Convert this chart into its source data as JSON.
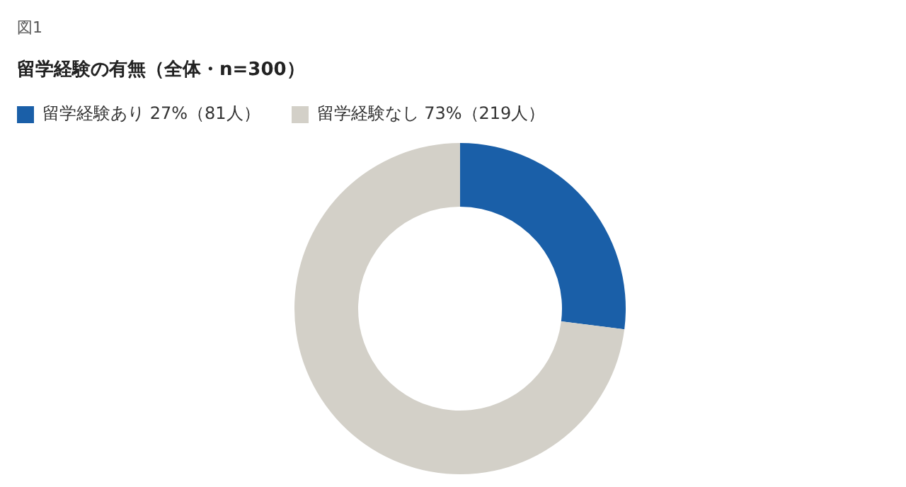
{
  "chart_data": {
    "type": "donut",
    "title": "留学経験の有無（全体・n=300）",
    "annotations": [
      "図1"
    ],
    "categories": [
      "留学経験あり 27%（81人）",
      "留学経験なし 73%（219人）"
    ],
    "values": [
      27,
      73
    ],
    "colors": [
      "#1a5fa8",
      "#d3d0c8"
    ],
    "legend": "top left"
  }
}
